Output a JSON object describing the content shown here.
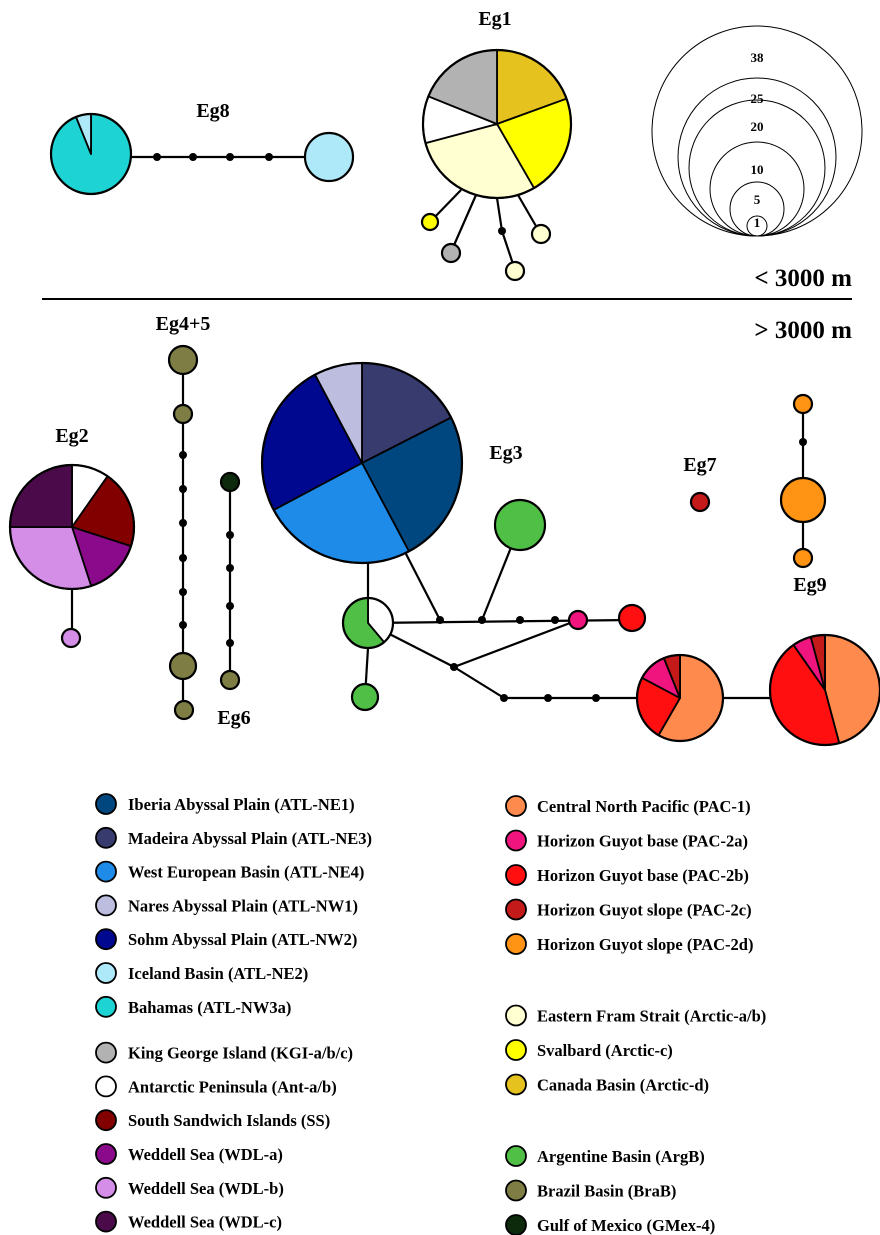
{
  "depth_labels": {
    "shallow": "< 3000 m",
    "deep": "> 3000 m"
  },
  "colors": {
    "ATL-NE1": "#00467f",
    "ATL-NE3": "#373b6e",
    "ATL-NE4": "#1f8be9",
    "ATL-NW1": "#bdbddf",
    "ATL-NW2": "#00088f",
    "ATL-NE2": "#aee9f9",
    "ATL-NW3a": "#1dd3d3",
    "KGI": "#b2b2b2",
    "Ant": "#ffffff",
    "SS": "#820000",
    "WDL-a": "#8b0a8b",
    "WDL-b": "#d48ee8",
    "WDL-c": "#4b0a49",
    "PAC-1": "#ff8a4d",
    "PAC-2a": "#f0147e",
    "PAC-2b": "#ff0f0f",
    "PAC-2c": "#c41a1a",
    "PAC-2d": "#ff9414",
    "Arctic-ab": "#ffffd2",
    "Arctic-c": "#ffff00",
    "Arctic-d": "#e6c21e",
    "ArgB": "#4fbf46",
    "BraB": "#7d7d44",
    "GMex": "#0d2a0d"
  },
  "networks": [
    {
      "id": "Eg1",
      "label": "Eg1"
    },
    {
      "id": "Eg8",
      "label": "Eg8"
    },
    {
      "id": "Eg4+5",
      "label": "Eg4+5"
    },
    {
      "id": "Eg2",
      "label": "Eg2"
    },
    {
      "id": "Eg3",
      "label": "Eg3"
    },
    {
      "id": "Eg7",
      "label": "Eg7"
    },
    {
      "id": "Eg9",
      "label": "Eg9"
    },
    {
      "id": "Eg6",
      "label": "Eg6"
    }
  ],
  "scale": {
    "values": [
      "38",
      "25",
      "20",
      "10",
      "5",
      "1"
    ]
  },
  "legend": {
    "col1": [
      [
        {
          "code": "ATL-NE1",
          "label": "Iberia Abyssal Plain (ATL-NE1)"
        },
        {
          "code": "ATL-NE3",
          "label": "Madeira Abyssal Plain (ATL-NE3)"
        },
        {
          "code": "ATL-NE4",
          "label": "West European Basin (ATL-NE4)"
        },
        {
          "code": "ATL-NW1",
          "label": "Nares Abyssal Plain (ATL-NW1)"
        },
        {
          "code": "ATL-NW2",
          "label": "Sohm Abyssal Plain (ATL-NW2)"
        },
        {
          "code": "ATL-NE2",
          "label": "Iceland Basin (ATL-NE2)"
        },
        {
          "code": "ATL-NW3a",
          "label": "Bahamas (ATL-NW3a)"
        }
      ],
      [
        {
          "code": "KGI",
          "label": "King George Island (KGI-a/b/c)"
        },
        {
          "code": "Ant",
          "label": "Antarctic Peninsula (Ant-a/b)"
        },
        {
          "code": "SS",
          "label": "South Sandwich Islands (SS)"
        },
        {
          "code": "WDL-a",
          "label": "Weddell Sea (WDL-a)"
        },
        {
          "code": "WDL-b",
          "label": "Weddell Sea (WDL-b)"
        },
        {
          "code": "WDL-c",
          "label": "Weddell Sea (WDL-c)"
        }
      ]
    ],
    "col2": [
      [
        {
          "code": "PAC-1",
          "label": "Central North Pacific (PAC-1)"
        },
        {
          "code": "PAC-2a",
          "label": "Horizon Guyot base (PAC-2a)"
        },
        {
          "code": "PAC-2b",
          "label": "Horizon Guyot base (PAC-2b)"
        },
        {
          "code": "PAC-2c",
          "label": "Horizon Guyot slope (PAC-2c)"
        },
        {
          "code": "PAC-2d",
          "label": "Horizon Guyot slope (PAC-2d)"
        }
      ],
      [
        {
          "code": "Arctic-ab",
          "label": "Eastern Fram Strait (Arctic-a/b)"
        },
        {
          "code": "Arctic-c",
          "label": "Svalbard (Arctic-c)"
        },
        {
          "code": "Arctic-d",
          "label": "Canada Basin (Arctic-d)"
        }
      ],
      [
        {
          "code": "ArgB",
          "label": "Argentine Basin (ArgB)"
        },
        {
          "code": "BraB",
          "label": "Brazil Basin (BraB)"
        },
        {
          "code": "GMex",
          "label": "Gulf of Mexico (GMex-4)"
        }
      ]
    ]
  }
}
